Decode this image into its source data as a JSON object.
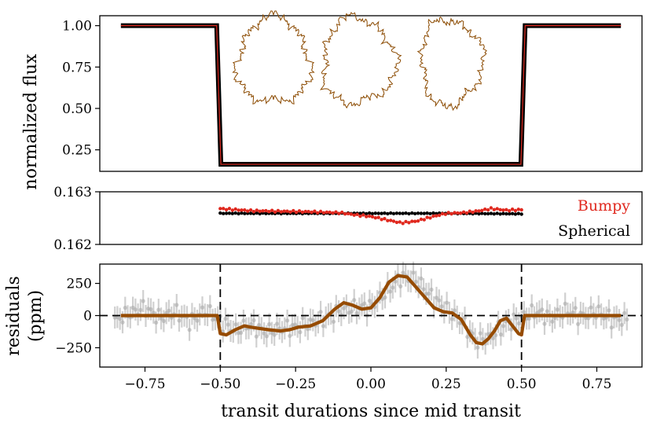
{
  "chart_data": [
    {
      "type": "line",
      "panel": "top",
      "ylabel": "normalized flux",
      "yticks": [
        "1.00",
        "0.75",
        "0.50",
        "0.25"
      ],
      "ytick_values": [
        1.0,
        0.75,
        0.5,
        0.25
      ],
      "xlim": [
        -0.9,
        0.9
      ],
      "ylim": [
        0.12,
        1.06
      ],
      "series": [
        {
          "color": "#e0281e",
          "outline_color": "#000000",
          "x": [
            -0.83,
            -0.512,
            -0.498,
            0.498,
            0.512,
            0.83
          ],
          "values": [
            1.0,
            1.0,
            0.1625,
            0.1625,
            1.0,
            1.0
          ]
        }
      ],
      "insets": [
        {
          "shape": "bumpy-planet-outline",
          "color": "#8b4a00",
          "count": 3
        }
      ]
    },
    {
      "type": "scatter",
      "panel": "middle",
      "yticks": [
        "0.163",
        "0.162"
      ],
      "ytick_values": [
        0.163,
        0.162
      ],
      "xlim": [
        -0.9,
        0.9
      ],
      "ylim": [
        0.162,
        0.163
      ],
      "x_range": [
        -0.5,
        0.5
      ],
      "series": [
        {
          "name": "Bumpy",
          "color": "#e0281e",
          "x": [
            -0.5,
            -0.4,
            -0.3,
            -0.2,
            -0.1,
            -0.05,
            0.0,
            0.05,
            0.1,
            0.15,
            0.2,
            0.25,
            0.3,
            0.35,
            0.4,
            0.45,
            0.5
          ],
          "values": [
            0.16268,
            0.16264,
            0.16263,
            0.16262,
            0.1626,
            0.16256,
            0.16253,
            0.16247,
            0.16241,
            0.16244,
            0.16252,
            0.16259,
            0.1626,
            0.16263,
            0.16268,
            0.16265,
            0.16266
          ]
        },
        {
          "name": "Spherical",
          "color": "#000000",
          "x": [
            -0.5,
            -0.25,
            0.0,
            0.25,
            0.5
          ],
          "values": [
            0.16259,
            0.16259,
            0.16259,
            0.16259,
            0.16258
          ]
        }
      ]
    },
    {
      "type": "line",
      "panel": "bottom",
      "xlabel": "transit durations since mid transit",
      "ylabel": "residuals\n(ppm)",
      "ylabel_lines": [
        "residuals",
        "(ppm)"
      ],
      "xticks": [
        "−0.75",
        "−0.50",
        "−0.25",
        "0.00",
        "0.25",
        "0.50",
        "0.75"
      ],
      "xtick_values": [
        -0.75,
        -0.5,
        -0.25,
        0.0,
        0.25,
        0.5,
        0.75
      ],
      "yticks": [
        "250",
        "0",
        "−250"
      ],
      "ytick_values": [
        250,
        0,
        -250
      ],
      "xlim": [
        -0.9,
        0.9
      ],
      "ylim": [
        -400,
        400
      ],
      "vlines": [
        -0.5,
        0.5
      ],
      "hline": 0,
      "series": [
        {
          "color": "#964b00",
          "x": [
            -0.83,
            -0.51,
            -0.5,
            -0.48,
            -0.45,
            -0.42,
            -0.4,
            -0.37,
            -0.34,
            -0.3,
            -0.27,
            -0.24,
            -0.2,
            -0.16,
            -0.12,
            -0.09,
            -0.06,
            -0.03,
            0.0,
            0.03,
            0.06,
            0.09,
            0.12,
            0.15,
            0.18,
            0.21,
            0.24,
            0.27,
            0.3,
            0.33,
            0.35,
            0.37,
            0.39,
            0.41,
            0.43,
            0.45,
            0.47,
            0.49,
            0.5,
            0.51,
            0.83
          ],
          "values": [
            0,
            0,
            -140,
            -150,
            -110,
            -80,
            -90,
            -100,
            -110,
            -120,
            -110,
            -90,
            -80,
            -40,
            50,
            100,
            80,
            50,
            60,
            140,
            260,
            310,
            300,
            220,
            140,
            60,
            30,
            20,
            -30,
            -150,
            -210,
            -220,
            -180,
            -120,
            -40,
            -20,
            -80,
            -140,
            -150,
            0,
            0
          ]
        },
        {
          "color": "#aaaaaa",
          "style": "error-bar-points",
          "x": [
            -0.85,
            -0.8,
            -0.75,
            -0.7,
            -0.65,
            -0.6,
            -0.55,
            -0.45,
            -0.4,
            -0.35,
            -0.3,
            -0.25,
            -0.2,
            -0.15,
            -0.1,
            -0.05,
            0.0,
            0.05,
            0.1,
            0.15,
            0.2,
            0.25,
            0.3,
            0.35,
            0.4,
            0.45,
            0.55,
            0.6,
            0.65,
            0.7,
            0.75,
            0.8
          ],
          "values": [
            -40,
            20,
            60,
            -20,
            30,
            -50,
            40,
            -120,
            -70,
            -130,
            -100,
            -90,
            -60,
            -20,
            40,
            60,
            70,
            180,
            300,
            280,
            150,
            50,
            -40,
            -200,
            -160,
            -60,
            30,
            -20,
            40,
            -10,
            30,
            -30
          ]
        }
      ]
    }
  ],
  "legend": {
    "placement": "right",
    "entries": [
      {
        "label": "Bumpy",
        "color": "#e0281e"
      },
      {
        "label": "Spherical",
        "color": "#000000"
      }
    ]
  }
}
